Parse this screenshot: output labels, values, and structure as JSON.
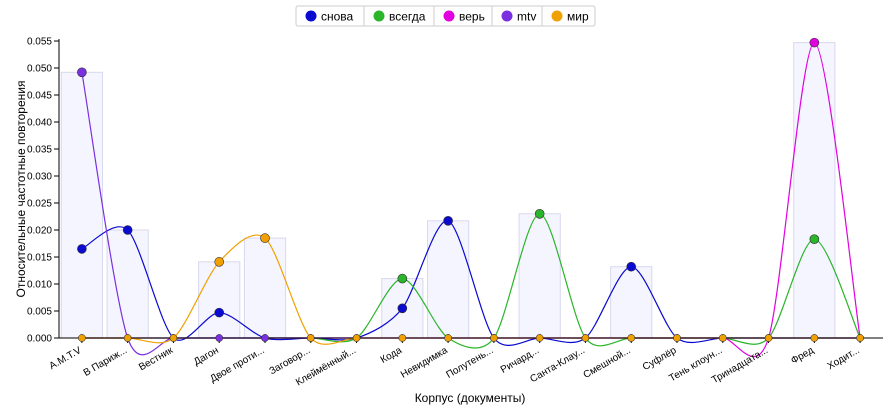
{
  "chart_data": {
    "type": "line",
    "xlabel": "Корпус (документы)",
    "ylabel": "Относительные частотные повторения",
    "ylim": [
      0,
      0.055
    ],
    "yticks": [
      "0.000",
      "0.005",
      "0.010",
      "0.015",
      "0.020",
      "0.025",
      "0.030",
      "0.035",
      "0.040",
      "0.045",
      "0.050",
      "0.055"
    ],
    "categories": [
      "A.M.T.V",
      "В Париж...",
      "Вестник",
      "Дагон",
      "Двое проти...",
      "Заговор...",
      "Клеймённый...",
      "Кода",
      "Невидимка",
      "Полутень...",
      "Ричард...",
      "Санта-Клау...",
      "Смешной...",
      "Суфлёр",
      "Тень клоун...",
      "Тринадцата...",
      "Фред",
      "Ходит..."
    ],
    "legend_position": "top-center",
    "series": [
      {
        "name": "снова",
        "color": "#0a0ad0",
        "values": [
          0.0165,
          0.02,
          0,
          0.0047,
          0,
          0,
          0,
          0.0055,
          0.0217,
          0,
          0,
          0,
          0.0132,
          0,
          0,
          0,
          0,
          0
        ]
      },
      {
        "name": "всегда",
        "color": "#2ab52a",
        "values": [
          0,
          0,
          0,
          0,
          0,
          0,
          0,
          0.011,
          0,
          0,
          0.023,
          0,
          0,
          0,
          0,
          0,
          0.0183,
          0
        ]
      },
      {
        "name": "верь",
        "color": "#e000e0",
        "values": [
          0,
          0,
          0,
          0,
          0,
          0,
          0,
          0,
          0,
          0,
          0,
          0,
          0,
          0,
          0,
          0,
          0.0547,
          0
        ]
      },
      {
        "name": "mtv",
        "color": "#7a30e0",
        "values": [
          0.0492,
          0,
          0,
          0,
          0,
          0,
          0,
          0,
          0,
          0,
          0,
          0,
          0,
          0,
          0,
          0,
          0,
          0
        ]
      },
      {
        "name": "мир",
        "color": "#f0a000",
        "values": [
          0,
          0,
          0,
          0.0141,
          0.0185,
          0,
          0,
          0,
          0,
          0,
          0,
          0,
          0,
          0,
          0,
          0,
          0,
          0
        ]
      }
    ],
    "bar_max": [
      0.0492,
      0.02,
      0,
      0.0141,
      0.0185,
      0,
      0,
      0.011,
      0.0217,
      0,
      0.023,
      0,
      0.0132,
      0,
      0,
      0,
      0.0547,
      0
    ]
  }
}
